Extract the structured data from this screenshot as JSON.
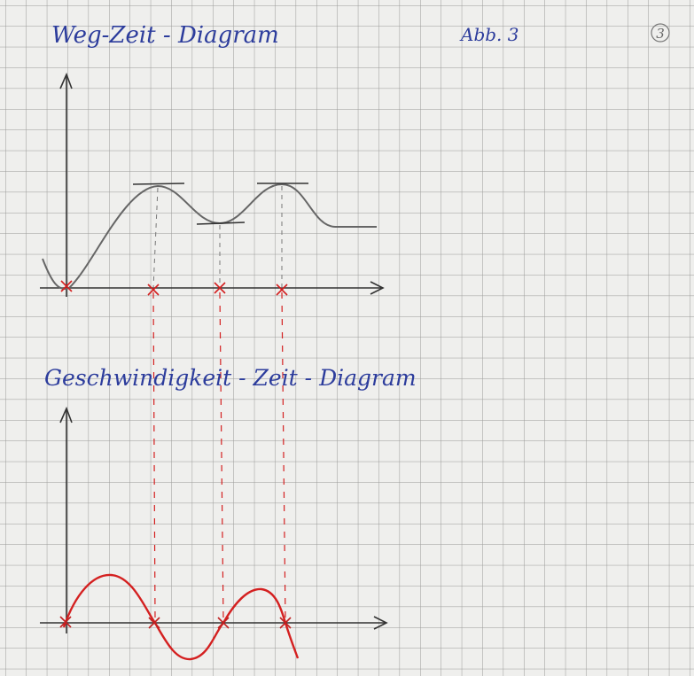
{
  "header": {
    "title": "Weg-Zeit - Diagram",
    "figure": "Abb. 3",
    "page": "3"
  },
  "lower": {
    "title": "Geschwindigkeit - Zeit - Diagram"
  }
}
